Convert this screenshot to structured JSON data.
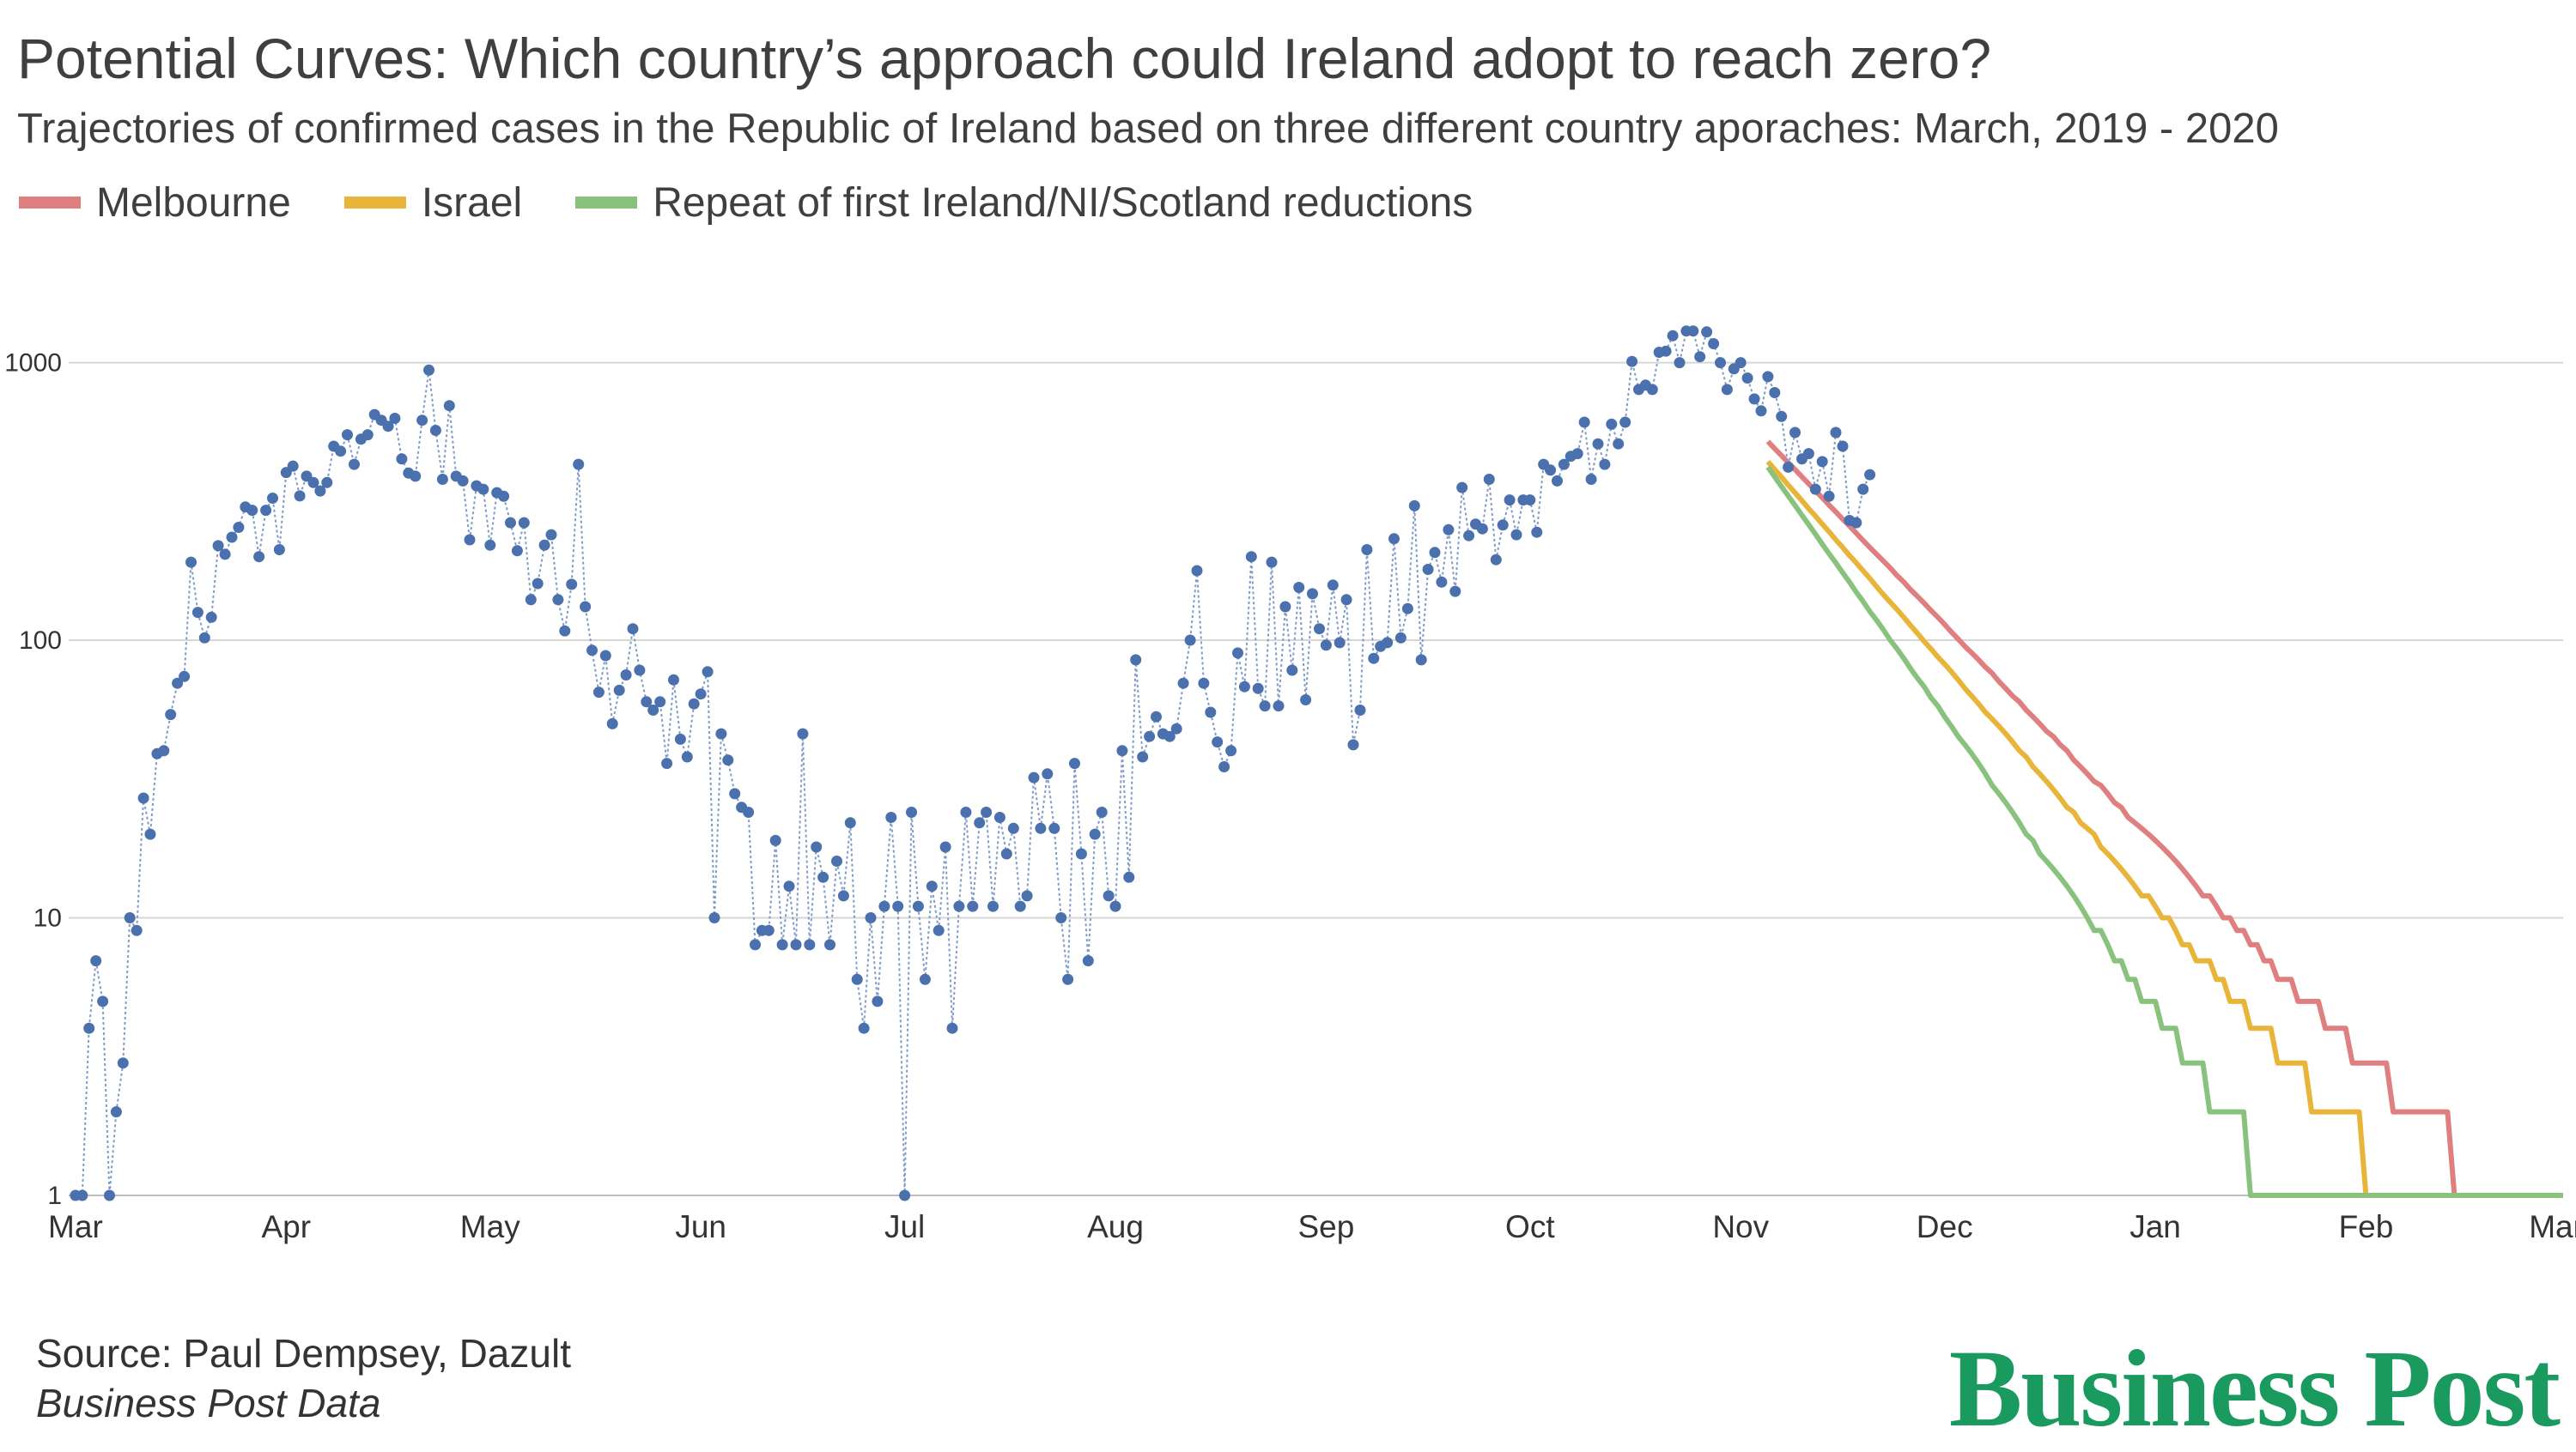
{
  "chart_data": {
    "type": "scatter",
    "title": "Potential Curves: Which country’s approach could Ireland adopt to reach zero?",
    "subtitle": "Trajectories of confirmed cases in the Republic of Ireland based on three different country aporaches: March, 2019 - 2020",
    "y_scale": "log",
    "ylim": [
      1,
      1800
    ],
    "y_ticks": [
      1,
      10,
      100,
      1000
    ],
    "y_tick_labels": [
      "1",
      "10",
      "100",
      "1000"
    ],
    "xlim": [
      "2020-02-29",
      "2021-03-02"
    ],
    "x_ticks": [
      {
        "label": "Mar",
        "date": "2020-03-01"
      },
      {
        "label": "Apr",
        "date": "2020-04-01"
      },
      {
        "label": "May",
        "date": "2020-05-01"
      },
      {
        "label": "Jun",
        "date": "2020-06-01"
      },
      {
        "label": "Jul",
        "date": "2020-07-01"
      },
      {
        "label": "Aug",
        "date": "2020-08-01"
      },
      {
        "label": "Sep",
        "date": "2020-09-01"
      },
      {
        "label": "Oct",
        "date": "2020-10-01"
      },
      {
        "label": "Nov",
        "date": "2020-11-01"
      },
      {
        "label": "Dec",
        "date": "2020-12-01"
      },
      {
        "label": "Jan",
        "date": "2021-01-01"
      },
      {
        "label": "Feb",
        "date": "2021-02-01"
      },
      {
        "label": "Mar",
        "date": "2021-03-01"
      }
    ],
    "grid": true,
    "legend_position": "top-left",
    "legend": [
      {
        "name": "Melbourne",
        "color": "#df7f7f"
      },
      {
        "name": "Israel",
        "color": "#e8b43a"
      },
      {
        "name": "Repeat of first Ireland/NI/Scotland reductions",
        "color": "#88c27c"
      }
    ],
    "observed": {
      "color": "#4a70ad",
      "start_date": "2020-03-01",
      "values": [
        1,
        1,
        4,
        7,
        5,
        1,
        2,
        3,
        10,
        9,
        27,
        20,
        39,
        40,
        54,
        70,
        74,
        191,
        126,
        102,
        121,
        219,
        204,
        235,
        255,
        302,
        294,
        200,
        294,
        325,
        212,
        402,
        424,
        331,
        390,
        370,
        345,
        370,
        500,
        480,
        550,
        430,
        530,
        550,
        650,
        620,
        590,
        630,
        450,
        400,
        390,
        620,
        940,
        570,
        380,
        700,
        390,
        375,
        230,
        360,
        350,
        220,
        340,
        330,
        265,
        210,
        265,
        140,
        160,
        220,
        240,
        140,
        108,
        159,
        430,
        132,
        92,
        65,
        88,
        50,
        66,
        75,
        110,
        78,
        60,
        56,
        60,
        36,
        72,
        44,
        38,
        59,
        64,
        77,
        10,
        46,
        37,
        28,
        25,
        24,
        8,
        9,
        9,
        19,
        8,
        13,
        8,
        46,
        8,
        18,
        14,
        8,
        16,
        12,
        22,
        6,
        4,
        10,
        5,
        11,
        23,
        11,
        1,
        24,
        11,
        6,
        13,
        9,
        18,
        4,
        11,
        24,
        11,
        22,
        24,
        11,
        23,
        17,
        21,
        11,
        12,
        32,
        21,
        33,
        21,
        10,
        6,
        36,
        17,
        7,
        20,
        24,
        12,
        11,
        40,
        14,
        85,
        38,
        45,
        53,
        46,
        45,
        48,
        70,
        100,
        178,
        70,
        55,
        43,
        35,
        40,
        90,
        68,
        200,
        67,
        58,
        191,
        58,
        132,
        78,
        155,
        61,
        147,
        110,
        96,
        158,
        98,
        140,
        42,
        56,
        212,
        86,
        95,
        98,
        232,
        102,
        130,
        305,
        85,
        180,
        207,
        162,
        250,
        150,
        355,
        238,
        262,
        252,
        380,
        195,
        260,
        320,
        240,
        320,
        320,
        245,
        430,
        410,
        375,
        430,
        460,
        470,
        610,
        380,
        510,
        430,
        600,
        510,
        610,
        1010,
        800,
        830,
        800,
        1090,
        1100,
        1250,
        1000,
        1300,
        1300,
        1050,
        1290,
        1170,
        1000,
        800,
        950,
        1000,
        880,
        740,
        670,
        890,
        780,
        640,
        420,
        560,
        450,
        470,
        350,
        440,
        330,
        560,
        500,
        270,
        265,
        350,
        395
      ]
    },
    "projections": [
      {
        "name": "Melbourne",
        "color": "#df7f7f",
        "start": {
          "date": "2020-11-05",
          "value": 520
        },
        "end": {
          "date": "2021-02-20",
          "value": 1
        }
      },
      {
        "name": "Israel",
        "color": "#e8b43a",
        "start": {
          "date": "2020-11-05",
          "value": 440
        },
        "end": {
          "date": "2021-02-07",
          "value": 1
        }
      },
      {
        "name": "Repeat of first Ireland/NI/Scotland reductions",
        "color": "#88c27c",
        "start": {
          "date": "2020-11-05",
          "value": 420
        },
        "end": {
          "date": "2021-01-20",
          "value": 1
        }
      }
    ]
  },
  "source": {
    "line1": "Source: Paul Dempsey, Dazult",
    "line2": "Business Post Data"
  },
  "logo": {
    "text": "Business Post",
    "color": "#1a9a5e"
  }
}
